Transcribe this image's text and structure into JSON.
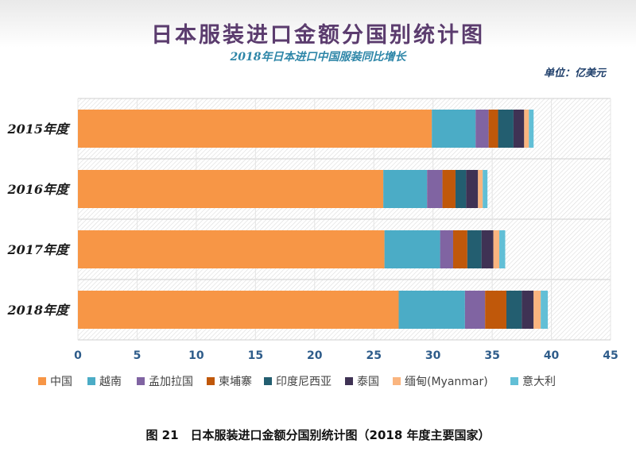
{
  "chart_data": {
    "type": "bar",
    "orientation": "horizontal",
    "stacked": true,
    "title": "日本服装进口金额分国别统计图",
    "subtitle": "2018年日本进口中国服装同比增长",
    "unit_label": "单位：亿美元",
    "categories": [
      "2015年度",
      "2016年度",
      "2017年度",
      "2018年度"
    ],
    "x_ticks": [
      "0",
      "5",
      "10",
      "15",
      "20",
      "25",
      "30",
      "35",
      "40",
      "45"
    ],
    "xlim": [
      0,
      45
    ],
    "grid": true,
    "legend_position": "bottom",
    "series": [
      {
        "name": "中国",
        "color": "#F79646",
        "values": [
          29.9,
          25.8,
          25.9,
          27.1
        ]
      },
      {
        "name": "越南",
        "color": "#4BACC6",
        "values": [
          3.7,
          3.7,
          4.7,
          5.6
        ]
      },
      {
        "name": "孟加拉国",
        "color": "#8064A2",
        "values": [
          1.1,
          1.3,
          1.1,
          1.7
        ]
      },
      {
        "name": "柬埔寨",
        "color": "#C0580A",
        "values": [
          0.8,
          1.1,
          1.2,
          1.8
        ]
      },
      {
        "name": "印度尼西亚",
        "color": "#235E70",
        "values": [
          1.3,
          0.9,
          1.2,
          1.3
        ]
      },
      {
        "name": "泰国",
        "color": "#3F3254",
        "values": [
          0.9,
          1.0,
          1.0,
          1.0
        ]
      },
      {
        "name": "缅甸(Myanmar)",
        "color": "#FAB57F",
        "values": [
          0.4,
          0.4,
          0.5,
          0.6
        ]
      },
      {
        "name": "意大利",
        "color": "#62BFD6",
        "values": [
          0.4,
          0.4,
          0.5,
          0.6
        ]
      }
    ]
  },
  "caption": "图 21　日本服装进口金额分国别统计图（2018 年度主要国家）"
}
